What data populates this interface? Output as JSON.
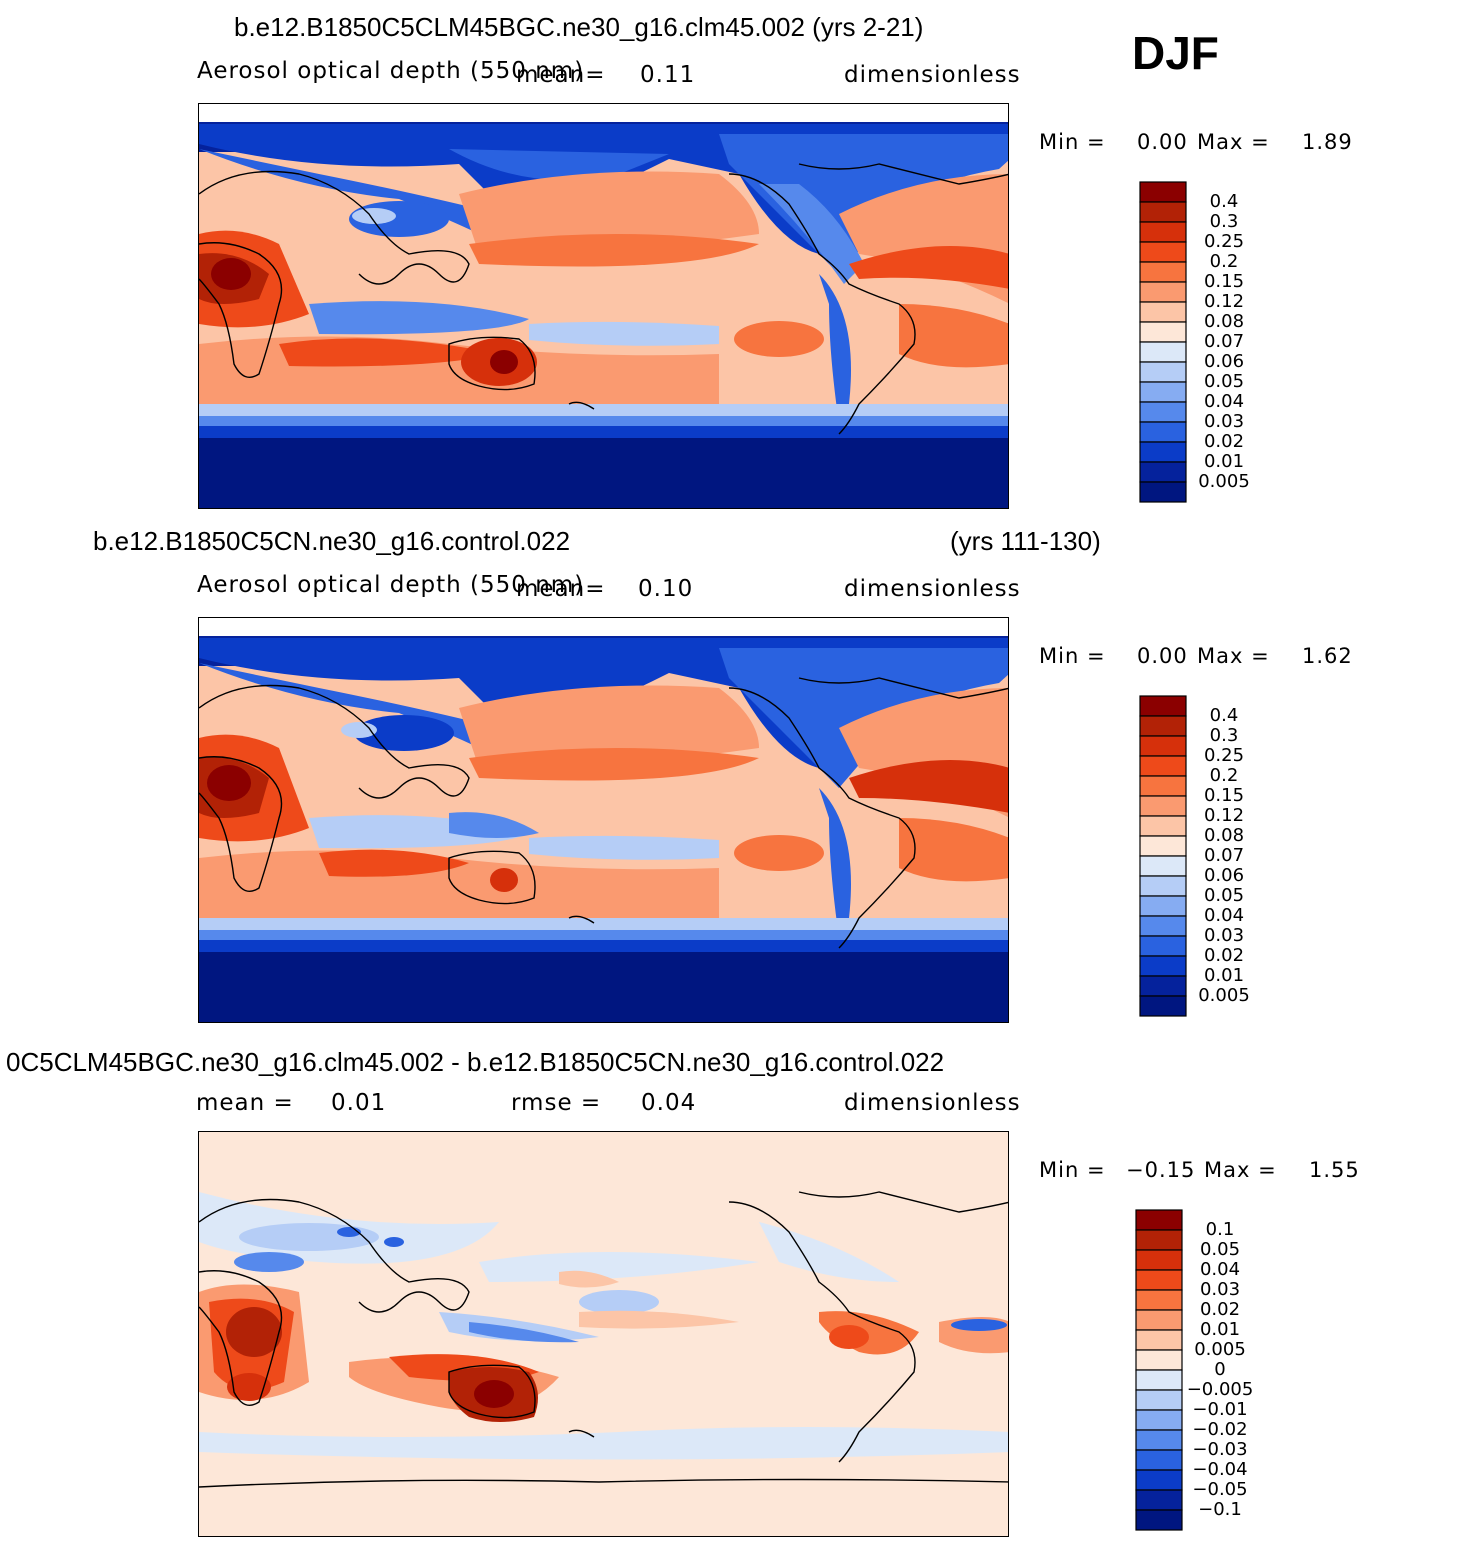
{
  "season": "DJF",
  "panels": [
    {
      "title": "b.e12.B1850C5CLM45BGC.ne30_g16.clm45.002 (yrs 2-21)",
      "title_right": "",
      "variable": "Aerosol optical depth (550 nm)",
      "mean_label": "mean=",
      "mean_value": "0.11",
      "rmse_label": "",
      "rmse_value": "",
      "units": "dimensionless",
      "min_label": "Min =",
      "min_value": "0.00",
      "max_label": "Max =",
      "max_value": "1.89",
      "colorbar": {
        "levels": [
          "0.4",
          "0.3",
          "0.25",
          "0.2",
          "0.15",
          "0.12",
          "0.08",
          "0.07",
          "0.06",
          "0.05",
          "0.04",
          "0.03",
          "0.02",
          "0.01",
          "0.005"
        ],
        "colors": [
          "#8b0000",
          "#b22206",
          "#d6300b",
          "#ee4a1a",
          "#f7743f",
          "#fa9a70",
          "#fcc5a7",
          "#fde7d8",
          "#dce8f8",
          "#b5cdf6",
          "#86acf2",
          "#5689ec",
          "#2a62e0",
          "#0b3cc8",
          "#05229c",
          "#001680"
        ]
      }
    },
    {
      "title": "b.e12.B1850C5CN.ne30_g16.control.022",
      "title_right": "(yrs 111-130)",
      "variable": "Aerosol optical depth (550 nm)",
      "mean_label": "mean=",
      "mean_value": "0.10",
      "rmse_label": "",
      "rmse_value": "",
      "units": "dimensionless",
      "min_label": "Min =",
      "min_value": "0.00",
      "max_label": "Max =",
      "max_value": "1.62",
      "colorbar": {
        "levels": [
          "0.4",
          "0.3",
          "0.25",
          "0.2",
          "0.15",
          "0.12",
          "0.08",
          "0.07",
          "0.06",
          "0.05",
          "0.04",
          "0.03",
          "0.02",
          "0.01",
          "0.005"
        ],
        "colors": [
          "#8b0000",
          "#b22206",
          "#d6300b",
          "#ee4a1a",
          "#f7743f",
          "#fa9a70",
          "#fcc5a7",
          "#fde7d8",
          "#dce8f8",
          "#b5cdf6",
          "#86acf2",
          "#5689ec",
          "#2a62e0",
          "#0b3cc8",
          "#05229c",
          "#001680"
        ]
      }
    },
    {
      "title": "0C5CLM45BGC.ne30_g16.clm45.002 - b.e12.B1850C5CN.ne30_g16.control.022",
      "title_right": "",
      "variable": "",
      "mean_label": "mean =",
      "mean_value": "0.01",
      "rmse_label": "rmse =",
      "rmse_value": "0.04",
      "units": "dimensionless",
      "min_label": "Min =",
      "min_value": "−0.15",
      "max_label": "Max =",
      "max_value": "1.55",
      "colorbar": {
        "levels": [
          "0.1",
          "0.05",
          "0.04",
          "0.03",
          "0.02",
          "0.01",
          "0.005",
          "0",
          "−0.005",
          "−0.01",
          "−0.02",
          "−0.03",
          "−0.04",
          "−0.05",
          "−0.1"
        ],
        "colors": [
          "#8b0000",
          "#b22206",
          "#d6300b",
          "#ee4a1a",
          "#f7743f",
          "#fa9a70",
          "#fcc5a7",
          "#fde7d8",
          "#dce8f8",
          "#b5cdf6",
          "#86acf2",
          "#5689ec",
          "#2a62e0",
          "#0b3cc8",
          "#05229c",
          "#001680"
        ]
      }
    }
  ]
}
